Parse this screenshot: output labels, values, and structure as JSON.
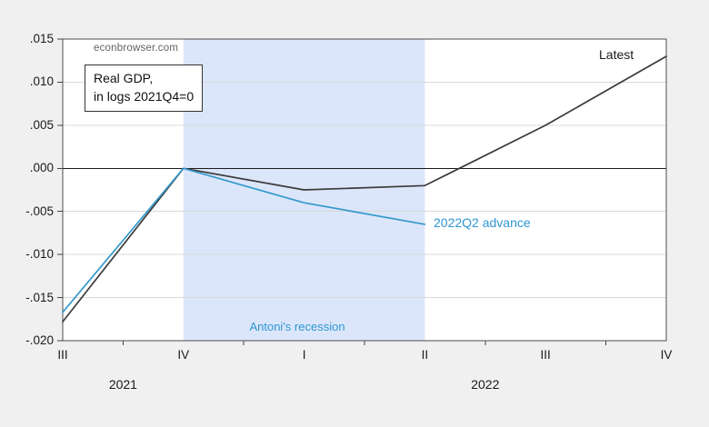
{
  "chart": {
    "watermark": "econbrowser.com",
    "note": {
      "line1": "Real GDP,",
      "line2": "in logs 2021Q4=0"
    },
    "labels": {
      "latest": "Latest",
      "advance": "2022Q2 advance",
      "recession": "Antoni's recession"
    }
  },
  "chart_data": {
    "type": "line",
    "title": "Real GDP, in logs 2021Q4=0",
    "x_categories": [
      "2021Q3",
      "2021Q4",
      "2022Q1",
      "2022Q2",
      "2022Q3",
      "2022Q4"
    ],
    "x_tick_labels": [
      "III",
      "IV",
      "I",
      "II",
      "III",
      "IV"
    ],
    "year_labels": [
      {
        "label": "2021",
        "from": 0,
        "to": 1
      },
      {
        "label": "2022",
        "from": 2,
        "to": 5
      }
    ],
    "y_ticks": [
      {
        "value": 0.015,
        "label": ".015"
      },
      {
        "value": 0.01,
        "label": ".010"
      },
      {
        "value": 0.005,
        "label": ".005"
      },
      {
        "value": 0.0,
        "label": ".000"
      },
      {
        "value": -0.005,
        "label": "-.005"
      },
      {
        "value": -0.01,
        "label": "-.010"
      },
      {
        "value": -0.015,
        "label": "-.015"
      },
      {
        "value": -0.02,
        "label": "-.020"
      }
    ],
    "ylim": [
      -0.02,
      0.015
    ],
    "grid": "horizontal",
    "zero_line": true,
    "legend_position": "inline-annotations",
    "series": [
      {
        "name": "Latest",
        "color": "#3b3b3b",
        "values": [
          -0.0178,
          0.0,
          -0.0025,
          -0.002,
          0.005,
          0.013
        ]
      },
      {
        "name": "2022Q2 advance",
        "color": "#3399cc",
        "values": [
          -0.0167,
          0.0,
          -0.004,
          -0.0065
        ]
      }
    ],
    "shaded_region": {
      "label": "Antoni's recession",
      "from_index": 1,
      "to_index": 3,
      "color": "#dbe6fa"
    }
  },
  "colors": {
    "background": "#f0f0f0",
    "plot_background": "#ffffff",
    "plot_border": "#4d4d4d",
    "gridline": "#d9d9d9",
    "zero_line": "#1a1a1a",
    "accent_blue": "#2e96d2",
    "line_dark": "#3b3b3b",
    "recession_fill": "#dbe6fa"
  }
}
